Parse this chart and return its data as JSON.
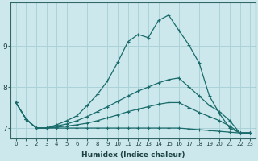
{
  "xlabel": "Humidex (Indice chaleur)",
  "xlim": [
    -0.5,
    23.5
  ],
  "ylim": [
    6.75,
    10.05
  ],
  "bg_color": "#cce8ec",
  "line_color": "#1a6b6b",
  "grid_color": "#aad4d8",
  "red_line_color": "#cc7777",
  "xticks": [
    0,
    1,
    2,
    3,
    4,
    5,
    6,
    7,
    8,
    9,
    10,
    11,
    12,
    13,
    14,
    15,
    16,
    17,
    18,
    19,
    20,
    21,
    22,
    23
  ],
  "yticks": [
    7,
    8,
    9
  ],
  "curves": [
    {
      "x": [
        0,
        1,
        2,
        3,
        4,
        5,
        6,
        7,
        8,
        9,
        10,
        11,
        12,
        13,
        14,
        15,
        16,
        17,
        18,
        19,
        20,
        21,
        22,
        23
      ],
      "y": [
        7.62,
        7.22,
        7.0,
        7.0,
        7.08,
        7.18,
        7.3,
        7.55,
        7.82,
        8.15,
        8.6,
        9.1,
        9.28,
        9.2,
        9.62,
        9.75,
        9.38,
        9.02,
        8.58,
        7.78,
        7.35,
        7.0,
        6.88,
        6.88
      ],
      "markers": true
    },
    {
      "x": [
        0,
        1,
        2,
        3,
        4,
        5,
        6,
        7,
        8,
        9,
        10,
        11,
        12,
        13,
        14,
        15,
        16,
        17,
        18,
        19,
        20,
        21,
        22,
        23
      ],
      "y": [
        7.62,
        7.22,
        7.0,
        7.0,
        7.05,
        7.1,
        7.18,
        7.28,
        7.4,
        7.52,
        7.65,
        7.78,
        7.9,
        8.0,
        8.1,
        8.18,
        8.22,
        8.0,
        7.78,
        7.55,
        7.4,
        7.18,
        6.88,
        6.88
      ],
      "markers": true
    },
    {
      "x": [
        0,
        1,
        2,
        3,
        4,
        5,
        6,
        7,
        8,
        9,
        10,
        11,
        12,
        13,
        14,
        15,
        16,
        17,
        18,
        19,
        20,
        21,
        22,
        23
      ],
      "y": [
        7.62,
        7.22,
        7.0,
        7.0,
        7.02,
        7.05,
        7.08,
        7.12,
        7.18,
        7.25,
        7.32,
        7.4,
        7.46,
        7.52,
        7.58,
        7.62,
        7.62,
        7.5,
        7.38,
        7.28,
        7.18,
        7.05,
        6.88,
        6.88
      ],
      "markers": true
    },
    {
      "x": [
        0,
        1,
        2,
        3,
        4,
        5,
        6,
        7,
        8,
        9,
        10,
        11,
        12,
        13,
        14,
        15,
        16,
        17,
        18,
        19,
        20,
        21,
        22,
        23
      ],
      "y": [
        7.62,
        7.22,
        7.0,
        7.0,
        7.0,
        7.0,
        7.0,
        7.0,
        7.0,
        7.0,
        7.0,
        7.0,
        7.0,
        7.0,
        7.0,
        7.0,
        7.0,
        6.98,
        6.96,
        6.94,
        6.92,
        6.9,
        6.88,
        6.88
      ],
      "markers": true
    }
  ]
}
